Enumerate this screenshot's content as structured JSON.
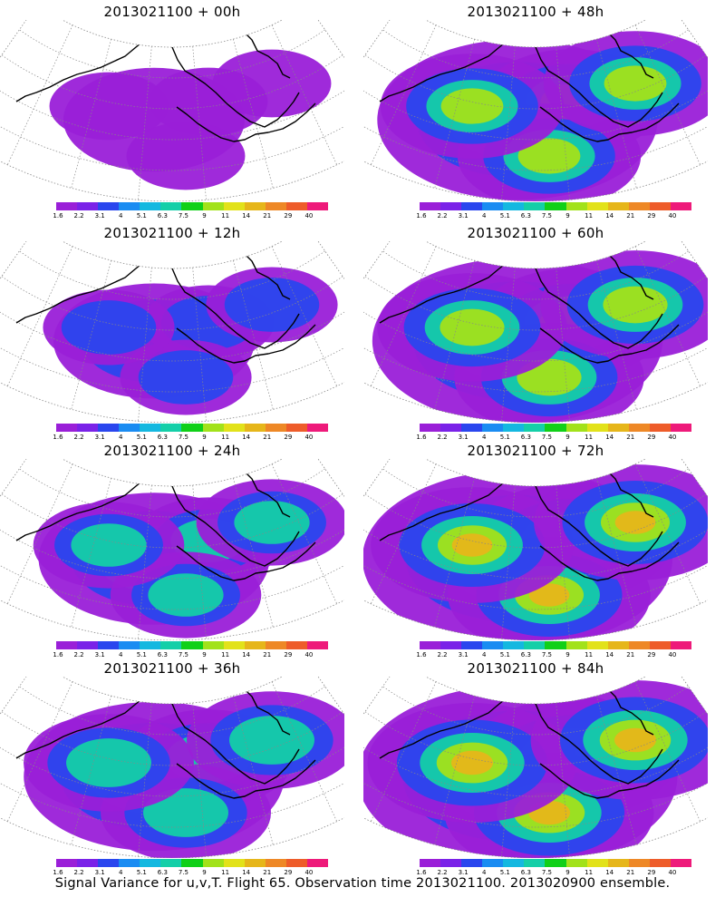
{
  "panels": [
    {
      "title": "2013021100 + 00h",
      "intensity": 0.25
    },
    {
      "title": "2013021100 + 48h",
      "intensity": 0.75
    },
    {
      "title": "2013021100 + 12h",
      "intensity": 0.35
    },
    {
      "title": "2013021100 + 60h",
      "intensity": 0.8
    },
    {
      "title": "2013021100 + 24h",
      "intensity": 0.5
    },
    {
      "title": "2013021100 + 72h",
      "intensity": 0.9
    },
    {
      "title": "2013021100 + 36h",
      "intensity": 0.65
    },
    {
      "title": "2013021100 + 84h",
      "intensity": 0.95
    }
  ],
  "colorbar": {
    "labels": [
      "1.6",
      "2.2",
      "3.1",
      "4",
      "5.1",
      "6.3",
      "7.5",
      "9",
      "11",
      "14",
      "21",
      "29",
      "40"
    ],
    "colors": [
      "#9a1fd8",
      "#7a22e8",
      "#2a46ee",
      "#1a8cf2",
      "#14b8e0",
      "#14cfa8",
      "#10d018",
      "#a2e21a",
      "#e2e21a",
      "#e6b61a",
      "#ee8826",
      "#ee5c2a",
      "#ee1a7a"
    ]
  },
  "caption": "Signal Variance for u,v,T. Flight 65. Observation time 2013021100. 2013020900 ensemble."
}
